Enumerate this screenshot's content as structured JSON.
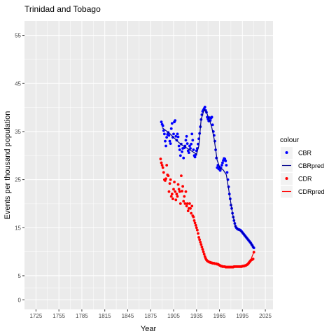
{
  "chart_data": {
    "type": "scatter",
    "title": "Trinidad and Tobago",
    "xlabel": "Year",
    "ylabel": "Events per thousand population",
    "xlim": [
      1710,
      2035
    ],
    "ylim": [
      -2,
      58
    ],
    "x_ticks": [
      "1725",
      "1755",
      "1785",
      "1815",
      "1845",
      "1875",
      "1905",
      "1935",
      "1965",
      "1995",
      "2025"
    ],
    "y_ticks": [
      "0",
      "5",
      "15",
      "25",
      "35",
      "45",
      "55"
    ],
    "legend_title": "colour",
    "legend_position": "right",
    "grid": true,
    "series": [
      {
        "name": "CBR",
        "kind": "points",
        "color": "#0000ff",
        "points": [
          [
            1889,
            37.0
          ],
          [
            1890,
            36.5
          ],
          [
            1891,
            36.2
          ],
          [
            1892,
            35.2
          ],
          [
            1893,
            34.5
          ],
          [
            1894,
            33.0
          ],
          [
            1895,
            32.0
          ],
          [
            1896,
            33.8
          ],
          [
            1897,
            34.4
          ],
          [
            1898,
            34.8
          ],
          [
            1899,
            34.2
          ],
          [
            1900,
            33.0
          ],
          [
            1901,
            32.5
          ],
          [
            1902,
            35.6
          ],
          [
            1903,
            36.7
          ],
          [
            1904,
            33.8
          ],
          [
            1905,
            34.5
          ],
          [
            1906,
            37.0
          ],
          [
            1907,
            37.3
          ],
          [
            1908,
            34.0
          ],
          [
            1909,
            33.2
          ],
          [
            1910,
            34.5
          ],
          [
            1911,
            33.9
          ],
          [
            1912,
            32.0
          ],
          [
            1913,
            31.2
          ],
          [
            1914,
            30.0
          ],
          [
            1915,
            32.4
          ],
          [
            1916,
            30.8
          ],
          [
            1917,
            31.5
          ],
          [
            1918,
            29.5
          ],
          [
            1919,
            31.6
          ],
          [
            1920,
            32.0
          ],
          [
            1921,
            33.2
          ],
          [
            1922,
            34.0
          ],
          [
            1923,
            32.5
          ],
          [
            1924,
            31.0
          ],
          [
            1925,
            30.6
          ],
          [
            1926,
            32.0
          ],
          [
            1927,
            31.5
          ],
          [
            1928,
            32.4
          ],
          [
            1929,
            34.5
          ],
          [
            1930,
            33.2
          ],
          [
            1931,
            31.2
          ],
          [
            1932,
            30.0
          ],
          [
            1933,
            29.7
          ],
          [
            1934,
            30.2
          ],
          [
            1935,
            31.0
          ],
          [
            1936,
            31.5
          ],
          [
            1937,
            32.4
          ],
          [
            1938,
            33.5
          ],
          [
            1939,
            34.6
          ],
          [
            1940,
            36.0
          ],
          [
            1941,
            37.5
          ],
          [
            1942,
            38.5
          ],
          [
            1943,
            39.2
          ],
          [
            1944,
            39.5
          ],
          [
            1945,
            39.8
          ],
          [
            1946,
            40.1
          ],
          [
            1947,
            39.4
          ],
          [
            1948,
            39.0
          ],
          [
            1949,
            38.0
          ],
          [
            1950,
            37.6
          ],
          [
            1951,
            37.2
          ],
          [
            1952,
            37.9
          ],
          [
            1953,
            37.3
          ],
          [
            1954,
            37.8
          ],
          [
            1955,
            38.0
          ],
          [
            1956,
            36.4
          ],
          [
            1957,
            35.0
          ],
          [
            1958,
            34.2
          ],
          [
            1959,
            33.0
          ],
          [
            1960,
            31.2
          ],
          [
            1961,
            29.5
          ],
          [
            1962,
            27.5
          ],
          [
            1963,
            28.0
          ],
          [
            1964,
            27.2
          ],
          [
            1965,
            27.6
          ],
          [
            1966,
            26.9
          ],
          [
            1967,
            27.4
          ],
          [
            1968,
            28.0
          ],
          [
            1969,
            28.5
          ],
          [
            1970,
            29.0
          ],
          [
            1971,
            29.4
          ],
          [
            1972,
            29.3
          ],
          [
            1973,
            28.9
          ],
          [
            1974,
            28.0
          ],
          [
            1975,
            26.5
          ],
          [
            1976,
            25.0
          ],
          [
            1977,
            23.5
          ],
          [
            1978,
            22.0
          ],
          [
            1979,
            21.0
          ],
          [
            1980,
            19.7
          ],
          [
            1981,
            19.0
          ],
          [
            1982,
            18.0
          ],
          [
            1983,
            17.2
          ],
          [
            1984,
            16.5
          ],
          [
            1985,
            15.9
          ],
          [
            1986,
            15.3
          ],
          [
            1987,
            15.0
          ],
          [
            1988,
            14.8
          ],
          [
            1989,
            14.7
          ],
          [
            1990,
            14.6
          ],
          [
            1991,
            14.6
          ],
          [
            1992,
            14.5
          ],
          [
            1993,
            14.4
          ],
          [
            1994,
            14.2
          ],
          [
            1995,
            14.0
          ],
          [
            1996,
            13.8
          ],
          [
            1997,
            13.6
          ],
          [
            1998,
            13.4
          ],
          [
            1999,
            13.2
          ],
          [
            2000,
            13.0
          ],
          [
            2001,
            12.8
          ],
          [
            2002,
            12.6
          ],
          [
            2003,
            12.4
          ],
          [
            2004,
            12.2
          ],
          [
            2005,
            12.0
          ],
          [
            2006,
            11.8
          ],
          [
            2007,
            11.5
          ],
          [
            2008,
            11.3
          ],
          [
            2009,
            11.0
          ],
          [
            2010,
            10.8
          ]
        ]
      },
      {
        "name": "CBRpred",
        "kind": "line",
        "color": "#00008b",
        "points": [
          [
            1890,
            35.8
          ],
          [
            1900,
            34.6
          ],
          [
            1905,
            33.8
          ],
          [
            1910,
            33.0
          ],
          [
            1915,
            32.3
          ],
          [
            1920,
            31.8
          ],
          [
            1925,
            31.3
          ],
          [
            1930,
            30.8
          ],
          [
            1935,
            30.3
          ],
          [
            1938,
            32.0
          ],
          [
            1941,
            37.5
          ],
          [
            1945,
            39.6
          ],
          [
            1948,
            39.0
          ],
          [
            1952,
            37.4
          ],
          [
            1955,
            35.8
          ],
          [
            1958,
            33.5
          ],
          [
            1962,
            29.0
          ],
          [
            1966,
            27.3
          ],
          [
            1970,
            27.0
          ],
          [
            1974,
            26.0
          ],
          [
            1978,
            22.0
          ],
          [
            1982,
            18.0
          ],
          [
            1986,
            15.2
          ],
          [
            1990,
            14.6
          ],
          [
            1995,
            14.0
          ],
          [
            2000,
            13.0
          ],
          [
            2005,
            12.0
          ],
          [
            2010,
            10.8
          ]
        ]
      },
      {
        "name": "CDR",
        "kind": "points",
        "color": "#ff0000",
        "points": [
          [
            1888,
            29.3
          ],
          [
            1889,
            28.5
          ],
          [
            1890,
            28.0
          ],
          [
            1891,
            27.5
          ],
          [
            1892,
            26.5
          ],
          [
            1893,
            25.0
          ],
          [
            1894,
            24.8
          ],
          [
            1895,
            25.2
          ],
          [
            1896,
            28.0
          ],
          [
            1897,
            26.0
          ],
          [
            1898,
            25.8
          ],
          [
            1899,
            22.5
          ],
          [
            1900,
            24.2
          ],
          [
            1901,
            25.0
          ],
          [
            1902,
            21.5
          ],
          [
            1903,
            22.0
          ],
          [
            1904,
            21.0
          ],
          [
            1905,
            23.0
          ],
          [
            1906,
            24.5
          ],
          [
            1907,
            22.5
          ],
          [
            1908,
            20.8
          ],
          [
            1909,
            22.0
          ],
          [
            1910,
            21.5
          ],
          [
            1911,
            24.0
          ],
          [
            1912,
            23.0
          ],
          [
            1913,
            22.5
          ],
          [
            1914,
            20.0
          ],
          [
            1915,
            25.8
          ],
          [
            1916,
            22.6
          ],
          [
            1917,
            23.6
          ],
          [
            1918,
            20.5
          ],
          [
            1919,
            21.5
          ],
          [
            1920,
            20.0
          ],
          [
            1921,
            22.5
          ],
          [
            1922,
            19.5
          ],
          [
            1923,
            20.0
          ],
          [
            1924,
            18.5
          ],
          [
            1925,
            19.0
          ],
          [
            1926,
            20.0
          ],
          [
            1927,
            19.0
          ],
          [
            1928,
            18.0
          ],
          [
            1929,
            19.5
          ],
          [
            1930,
            17.5
          ],
          [
            1931,
            17.2
          ],
          [
            1932,
            16.5
          ],
          [
            1933,
            16.0
          ],
          [
            1934,
            15.5
          ],
          [
            1935,
            15.0
          ],
          [
            1936,
            14.5
          ],
          [
            1937,
            13.8
          ],
          [
            1938,
            13.0
          ],
          [
            1939,
            12.5
          ],
          [
            1940,
            12.0
          ],
          [
            1941,
            11.5
          ],
          [
            1942,
            11.0
          ],
          [
            1943,
            10.5
          ],
          [
            1944,
            10.0
          ],
          [
            1945,
            9.5
          ],
          [
            1946,
            9.0
          ],
          [
            1947,
            8.6
          ],
          [
            1948,
            8.3
          ],
          [
            1949,
            8.1
          ],
          [
            1950,
            8.0
          ],
          [
            1951,
            7.9
          ],
          [
            1952,
            7.8
          ],
          [
            1953,
            7.8
          ],
          [
            1954,
            7.7
          ],
          [
            1955,
            7.7
          ],
          [
            1956,
            7.6
          ],
          [
            1957,
            7.6
          ],
          [
            1958,
            7.6
          ],
          [
            1959,
            7.5
          ],
          [
            1960,
            7.5
          ],
          [
            1961,
            7.5
          ],
          [
            1962,
            7.4
          ],
          [
            1963,
            7.4
          ],
          [
            1964,
            7.3
          ],
          [
            1965,
            7.2
          ],
          [
            1966,
            7.1
          ],
          [
            1967,
            7.0
          ],
          [
            1968,
            7.0
          ],
          [
            1969,
            6.9
          ],
          [
            1970,
            6.9
          ],
          [
            1971,
            6.9
          ],
          [
            1972,
            6.9
          ],
          [
            1973,
            6.8
          ],
          [
            1974,
            6.8
          ],
          [
            1975,
            6.8
          ],
          [
            1976,
            6.8
          ],
          [
            1977,
            6.8
          ],
          [
            1978,
            6.8
          ],
          [
            1979,
            6.8
          ],
          [
            1980,
            6.8
          ],
          [
            1981,
            6.8
          ],
          [
            1982,
            6.8
          ],
          [
            1983,
            6.8
          ],
          [
            1984,
            6.9
          ],
          [
            1985,
            6.9
          ],
          [
            1986,
            6.9
          ],
          [
            1987,
            6.9
          ],
          [
            1988,
            6.9
          ],
          [
            1989,
            6.9
          ],
          [
            1990,
            6.9
          ],
          [
            1991,
            6.9
          ],
          [
            1992,
            6.9
          ],
          [
            1993,
            6.9
          ],
          [
            1994,
            6.9
          ],
          [
            1995,
            7.0
          ],
          [
            1996,
            7.0
          ],
          [
            1997,
            7.0
          ],
          [
            1998,
            7.1
          ],
          [
            1999,
            7.1
          ],
          [
            2000,
            7.2
          ],
          [
            2001,
            7.3
          ],
          [
            2002,
            7.4
          ],
          [
            2003,
            7.6
          ],
          [
            2004,
            7.8
          ],
          [
            2005,
            8.0
          ],
          [
            2006,
            8.2
          ],
          [
            2007,
            8.3
          ],
          [
            2008,
            8.4
          ],
          [
            2009,
            8.5
          ],
          [
            2010,
            9.9
          ]
        ]
      },
      {
        "name": "CDRpred",
        "kind": "line",
        "color": "#ff0000",
        "points": [
          [
            1942,
            11.0
          ],
          [
            1945,
            9.5
          ],
          [
            1948,
            8.3
          ],
          [
            1952,
            7.8
          ],
          [
            1958,
            7.6
          ],
          [
            1964,
            7.3
          ],
          [
            1970,
            6.9
          ],
          [
            1980,
            6.8
          ],
          [
            1990,
            6.9
          ],
          [
            2000,
            7.2
          ],
          [
            2005,
            8.0
          ],
          [
            2010,
            9.9
          ]
        ]
      }
    ]
  }
}
